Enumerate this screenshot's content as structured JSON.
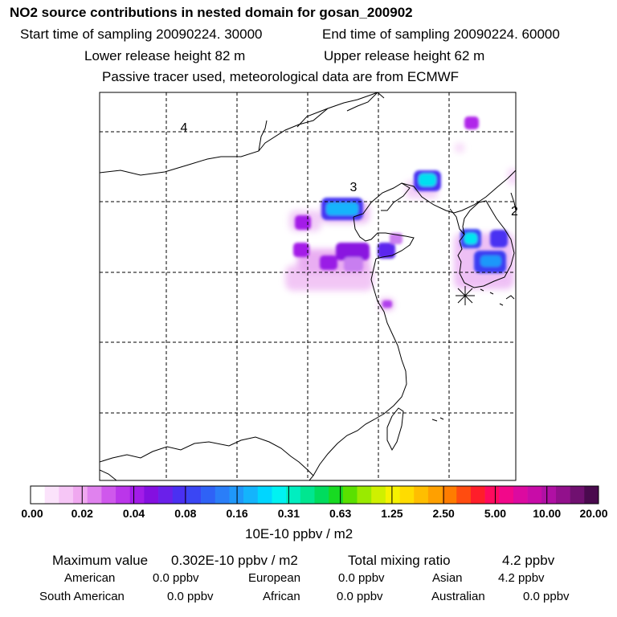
{
  "header": {
    "title": "NO2 source contributions in nested domain for gosan_200902",
    "start_time": "Start time of sampling 20090224. 30000",
    "end_time": "End time of sampling 20090224. 60000",
    "lower_height": "Lower release height   82 m",
    "upper_height": "Upper release height   62 m",
    "note": "Passive tracer used, meteorological data are from ECMWF"
  },
  "map": {
    "grid_labels": [
      "4",
      "3",
      "2"
    ],
    "colors": {
      "land_line": "#000000",
      "grid": "#000000"
    }
  },
  "colorbar": {
    "labels": [
      "0.00",
      "0.02",
      "0.04",
      "0.08",
      "0.16",
      "0.31",
      "0.63",
      "1.25",
      "2.50",
      "5.00",
      "10.00",
      "20.00"
    ],
    "units": "10E-10 ppbv / m2",
    "colors": [
      "#ffffff",
      "#fbe3fb",
      "#f6c6f6",
      "#f0a8f0",
      "#e082ee",
      "#cf58ec",
      "#bb36ea",
      "#a21ce8",
      "#8410e0",
      "#6a20ea",
      "#4a30f2",
      "#3a46f4",
      "#2f62f6",
      "#2a7ef8",
      "#1f98fa",
      "#14b4fc",
      "#00d6ff",
      "#00f2f2",
      "#00eec0",
      "#00e690",
      "#00dc5e",
      "#18da22",
      "#5ae000",
      "#9aea00",
      "#cff000",
      "#f6f200",
      "#ffdc00",
      "#ffbe00",
      "#ffa000",
      "#ff7c00",
      "#ff4c10",
      "#ff1e2a",
      "#ff0a5e",
      "#f2088a",
      "#dc0aa0",
      "#c80ca8",
      "#b010a4",
      "#92108c",
      "#701070",
      "#4a0a4e"
    ]
  },
  "footer": {
    "max_label": "Maximum value",
    "max_value": "0.302E-10 ppbv / m2",
    "total_label": "Total mixing ratio",
    "total_value": "4.2 ppbv",
    "regions": [
      {
        "name": "American",
        "value": "0.0 ppbv"
      },
      {
        "name": "European",
        "value": "0.0 ppbv"
      },
      {
        "name": "Asian",
        "value": "4.2 ppbv"
      },
      {
        "name": "South American",
        "value": "0.0 ppbv"
      },
      {
        "name": "African",
        "value": "0.0 ppbv"
      },
      {
        "name": "Australian",
        "value": "0.0 ppbv"
      }
    ]
  }
}
